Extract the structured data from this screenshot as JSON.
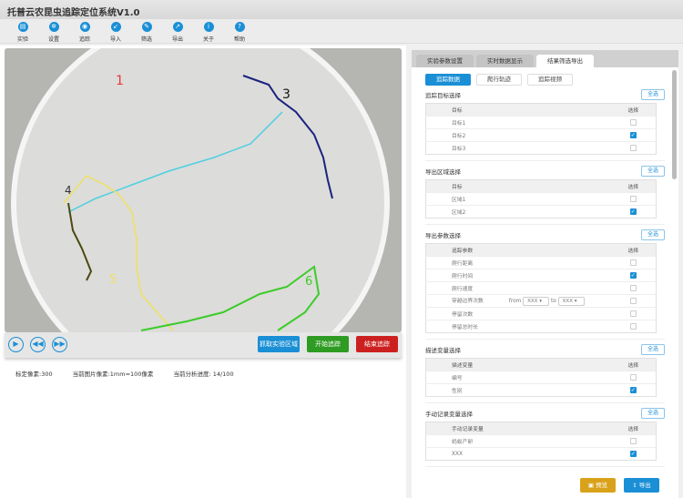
{
  "app": {
    "title": "托普云农昆虫追踪定位系统V1.0"
  },
  "toolbar": [
    {
      "label": "实验",
      "icon": "experiment-icon"
    },
    {
      "label": "设置",
      "icon": "gear-icon"
    },
    {
      "label": "追踪",
      "icon": "camera-icon"
    },
    {
      "label": "导入",
      "icon": "import-icon"
    },
    {
      "label": "筛选",
      "icon": "filter-icon"
    },
    {
      "label": "导出",
      "icon": "share-icon"
    },
    {
      "label": "关于",
      "icon": "info-icon"
    },
    {
      "label": "帮助",
      "icon": "help-icon"
    }
  ],
  "video": {
    "targets": [
      "1",
      "3",
      "4",
      "5",
      "6"
    ]
  },
  "controls": {
    "grab": "抓取实验区域",
    "start": "开始追踪",
    "stop": "结束追踪"
  },
  "info": {
    "calib": "标定像素:300",
    "scale": "当前图片像素:1mm=100像素",
    "progress": "当前分析进度:  14/100"
  },
  "tabs": [
    "实验参数设置",
    "实时数据显示",
    "结果筛选导出"
  ],
  "subtabs": [
    "追踪数据",
    "爬行轨迹",
    "追踪视频"
  ],
  "select_all": "全选",
  "col_select": "选择",
  "sections": [
    {
      "title": "追踪目标选择",
      "col": "目标",
      "rows": [
        {
          "name": "目标1",
          "checked": false
        },
        {
          "name": "目标2",
          "checked": true
        },
        {
          "name": "目标3",
          "checked": false
        }
      ]
    },
    {
      "title": "导出区域选择",
      "col": "目标",
      "rows": [
        {
          "name": "区域1",
          "checked": false
        },
        {
          "name": "区域2",
          "checked": true
        }
      ]
    },
    {
      "title": "导出参数选择",
      "col": "追踪参数",
      "rows": [
        {
          "name": "爬行距离",
          "checked": false
        },
        {
          "name": "爬行时间",
          "checked": true
        },
        {
          "name": "爬行速度",
          "checked": false
        },
        {
          "name": "穿越边界次数",
          "checked": false,
          "from": "from",
          "from_val": "XXX",
          "to": "to",
          "to_val": "XXX"
        },
        {
          "name": "停留次数",
          "checked": false
        },
        {
          "name": "停留总时长",
          "checked": false
        }
      ]
    },
    {
      "title": "描述变量选择",
      "col": "描述变量",
      "rows": [
        {
          "name": "编号",
          "checked": false
        },
        {
          "name": "性别",
          "checked": true
        }
      ]
    },
    {
      "title": "手动记录变量选择",
      "col": "手动记录变量",
      "rows": [
        {
          "name": "蚂蚁产卵",
          "checked": false
        },
        {
          "name": "XXX",
          "checked": true
        }
      ]
    }
  ],
  "footer": {
    "preview": "预览",
    "export": "导出"
  },
  "colors": {
    "accent": "#1a8fd6",
    "green": "#2e9b22",
    "red": "#cc2020",
    "gold": "#d9a21a"
  }
}
